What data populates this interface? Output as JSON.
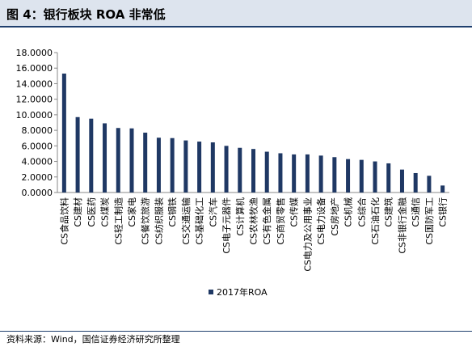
{
  "figure": {
    "title": "图 4：银行板块 ROA 非常低",
    "source": "资料来源：Wind，国信证券经济研究所整理"
  },
  "chart_data": {
    "type": "bar",
    "categories": [
      "CS食品饮料",
      "CS建材",
      "CS医药",
      "CS煤炭",
      "CS轻工制造",
      "CS家电",
      "CS餐饮旅游",
      "CS纺织服装",
      "CS钢铁",
      "CS交通运输",
      "CS基础化工",
      "CS汽车",
      "CS电子元器件",
      "CS计算机",
      "CS农林牧渔",
      "CS有色金属",
      "CS商贸零售",
      "CS传媒",
      "CS电力及公用事业",
      "CS电力设备",
      "CS房地产",
      "CS机械",
      "CS综合",
      "CS石油石化",
      "CS建筑",
      "CS非银行金融",
      "CS通信",
      "CS国防军工",
      "CS银行"
    ],
    "series": [
      {
        "name": "2017年ROA",
        "values": [
          15.3,
          9.7,
          9.5,
          8.9,
          8.3,
          8.25,
          7.7,
          7.05,
          7.0,
          6.7,
          6.55,
          6.45,
          6.0,
          5.75,
          5.6,
          5.25,
          5.05,
          4.9,
          4.9,
          4.75,
          4.55,
          4.3,
          4.2,
          4.0,
          3.75,
          2.95,
          2.5,
          2.15,
          0.9
        ]
      }
    ],
    "yticks": [
      "0.0000",
      "2.0000",
      "4.0000",
      "6.0000",
      "8.0000",
      "10.0000",
      "12.0000",
      "14.0000",
      "16.0000",
      "18.0000"
    ],
    "ylim": [
      0,
      18
    ],
    "grid": false,
    "legend": "bottom-center",
    "bar_color": "#1f3864"
  }
}
